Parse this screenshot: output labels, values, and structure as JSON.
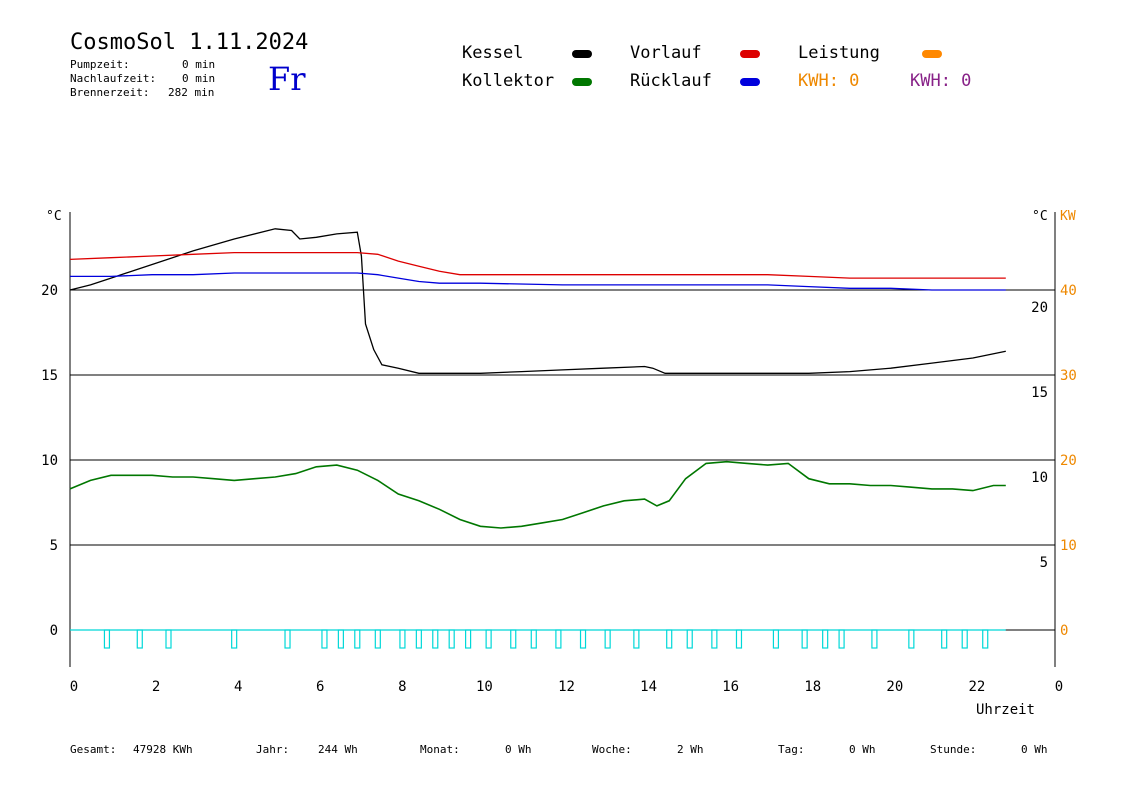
{
  "header": {
    "title": "CosmoSol 1.11.2024",
    "weekday": "Fr",
    "pumpzeit_label": "Pumpzeit:",
    "pumpzeit_value": "0 min",
    "nachlaufzeit_label": "Nachlaufzeit:",
    "nachlaufzeit_value": "0 min",
    "brennerzeit_label": "Brennerzeit:",
    "brennerzeit_value": "282 min"
  },
  "legend": {
    "kessel": "Kessel",
    "vorlauf": "Vorlauf",
    "leistung": "Leistung",
    "kollektor": "Kollektor",
    "ruecklauf": "Rücklauf",
    "kwh_orange": "KWH: 0",
    "kwh_purple": "KWH: 0"
  },
  "colors": {
    "kessel": "#000000",
    "vorlauf": "#dd0000",
    "leistung": "#ff8800",
    "kollektor": "#007700",
    "ruecklauf": "#0000dd",
    "pump": "#00d8d8",
    "kw_axis": "#ee8800",
    "kwh_purple": "#882288",
    "weekday": "#0000cc"
  },
  "footer": {
    "gesamt_label": "Gesamt:",
    "gesamt_value": "47928 KWh",
    "jahr_label": "Jahr:",
    "jahr_value": "244 Wh",
    "monat_label": "Monat:",
    "monat_value": "0 Wh",
    "woche_label": "Woche:",
    "woche_value": "2 Wh",
    "tag_label": "Tag:",
    "tag_value": "0 Wh",
    "stunde_label": "Stunde:",
    "stunde_value": "0 Wh"
  },
  "chart_data": {
    "type": "line",
    "xlabel": "Uhrzeit",
    "ylabel_left": "°C",
    "ylabel_right": "°C",
    "ylabel_right2": "KW",
    "xlim": [
      0,
      24
    ],
    "ylim": [
      -2,
      25
    ],
    "x_ticks": [
      "0",
      "2",
      "4",
      "6",
      "8",
      "10",
      "12",
      "14",
      "16",
      "18",
      "20",
      "22",
      "0"
    ],
    "y_ticks_left": [
      "0",
      "5",
      "10",
      "15",
      "20"
    ],
    "y_ticks_right": [
      "5",
      "10",
      "15",
      "20"
    ],
    "y_ticks_kw": [
      "0",
      "10",
      "20",
      "30",
      "40"
    ],
    "grid_lines_y": [
      0,
      5,
      10,
      15,
      20
    ],
    "series": [
      {
        "name": "Kessel",
        "x": [
          0,
          0.5,
          1,
          2,
          3,
          4,
          5,
          5.4,
          5.6,
          6,
          6.5,
          7,
          7.1,
          7.2,
          7.4,
          7.6,
          8,
          8.5,
          9,
          10,
          11,
          12,
          13,
          14,
          14.2,
          14.5,
          15,
          16,
          17,
          18,
          19,
          20,
          21,
          22,
          22.8
        ],
        "y": [
          20,
          20.3,
          20.7,
          21.5,
          22.3,
          23,
          23.6,
          23.5,
          23,
          23.1,
          23.3,
          23.4,
          22,
          18,
          16.5,
          15.6,
          15.4,
          15.1,
          15.1,
          15.1,
          15.2,
          15.3,
          15.4,
          15.5,
          15.4,
          15.1,
          15.1,
          15.1,
          15.1,
          15.1,
          15.2,
          15.4,
          15.7,
          16,
          16.4
        ]
      },
      {
        "name": "Vorlauf",
        "x": [
          0,
          1,
          2,
          3,
          4,
          5,
          6,
          7,
          7.5,
          8,
          8.5,
          9,
          9.5,
          10,
          12,
          14,
          16,
          17,
          18,
          19,
          20,
          21,
          22,
          22.8
        ],
        "y": [
          21.8,
          21.9,
          22.0,
          22.1,
          22.2,
          22.2,
          22.2,
          22.2,
          22.1,
          21.7,
          21.4,
          21.1,
          20.9,
          20.9,
          20.9,
          20.9,
          20.9,
          20.9,
          20.8,
          20.7,
          20.7,
          20.7,
          20.7,
          20.7
        ]
      },
      {
        "name": "Rücklauf",
        "x": [
          0,
          1,
          2,
          3,
          4,
          5,
          6,
          7,
          7.5,
          8,
          8.5,
          9,
          9.5,
          10,
          12,
          14,
          16,
          17,
          18,
          19,
          20,
          21,
          22,
          22.8
        ],
        "y": [
          20.8,
          20.8,
          20.9,
          20.9,
          21.0,
          21.0,
          21.0,
          21.0,
          20.9,
          20.7,
          20.5,
          20.4,
          20.4,
          20.4,
          20.3,
          20.3,
          20.3,
          20.3,
          20.2,
          20.1,
          20.1,
          20.0,
          20.0,
          20.0
        ]
      },
      {
        "name": "Kollektor",
        "x": [
          0,
          0.5,
          1,
          1.5,
          2,
          2.5,
          3,
          3.5,
          4,
          4.5,
          5,
          5.5,
          6,
          6.5,
          7,
          7.5,
          8,
          8.5,
          9,
          9.5,
          10,
          10.5,
          11,
          11.5,
          12,
          12.5,
          13,
          13.5,
          14,
          14.3,
          14.6,
          15,
          15.5,
          16,
          16.5,
          17,
          17.5,
          18,
          18.5,
          19,
          19.5,
          20,
          20.5,
          21,
          21.5,
          22,
          22.5,
          22.8
        ],
        "y": [
          8.3,
          8.8,
          9.1,
          9.1,
          9.1,
          9.0,
          9.0,
          8.9,
          8.8,
          8.9,
          9.0,
          9.2,
          9.6,
          9.7,
          9.4,
          8.8,
          8.0,
          7.6,
          7.1,
          6.5,
          6.1,
          6.0,
          6.1,
          6.3,
          6.5,
          6.9,
          7.3,
          7.6,
          7.7,
          7.3,
          7.6,
          8.9,
          9.8,
          9.9,
          9.8,
          9.7,
          9.8,
          8.9,
          8.6,
          8.6,
          8.5,
          8.5,
          8.4,
          8.3,
          8.3,
          8.2,
          8.5,
          8.5
        ]
      }
    ],
    "pump_pulses_hours": [
      0.9,
      1.7,
      2.4,
      4.0,
      5.3,
      6.2,
      6.6,
      7.0,
      7.5,
      8.1,
      8.5,
      8.9,
      9.3,
      9.7,
      10.2,
      10.8,
      11.3,
      11.9,
      12.5,
      13.1,
      13.8,
      14.6,
      15.1,
      15.7,
      16.3,
      17.2,
      17.9,
      18.4,
      18.8,
      19.6,
      20.5,
      21.3,
      21.8,
      22.3
    ]
  }
}
